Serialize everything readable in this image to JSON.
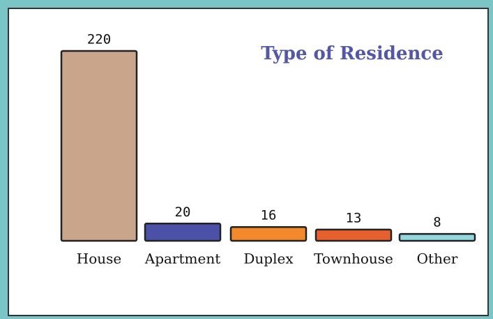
{
  "chart_data": {
    "type": "bar",
    "title": "Type of Residence",
    "categories": [
      "House",
      "Apartment",
      "Duplex",
      "Townhouse",
      "Other"
    ],
    "values": [
      220,
      20,
      16,
      13,
      8
    ],
    "colors": [
      "#c9a68b",
      "#4a51a6",
      "#f28a2c",
      "#e5602c",
      "#93d6de"
    ]
  }
}
